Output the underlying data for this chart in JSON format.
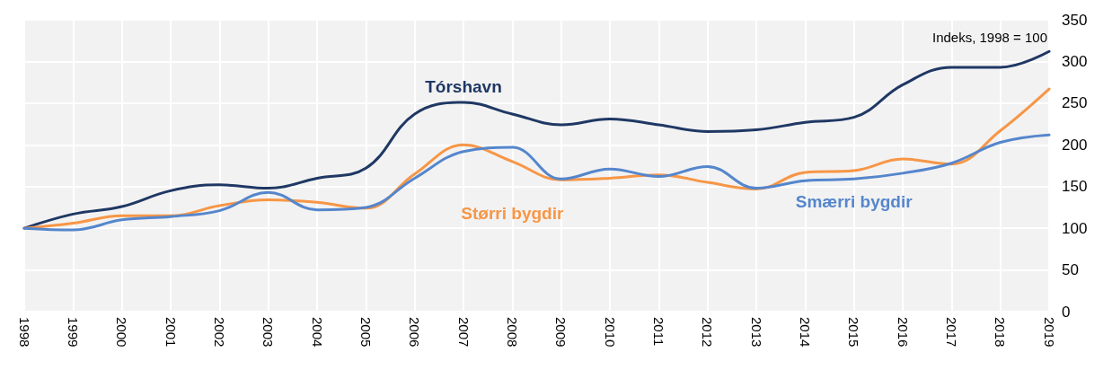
{
  "chart_data": {
    "type": "line",
    "categories": [
      "1998",
      "1999",
      "2000",
      "2001",
      "2002",
      "2003",
      "2004",
      "2005",
      "2006",
      "2007",
      "2008",
      "2009",
      "2010",
      "2011",
      "2012",
      "2013",
      "2014",
      "2015",
      "2016",
      "2017",
      "2018",
      "2019"
    ],
    "series": [
      {
        "name": "Tórshavn",
        "color": "#1f3864",
        "values": [
          100,
          117,
          126,
          145,
          152,
          148,
          160,
          172,
          237,
          251,
          237,
          224,
          231,
          224,
          216,
          218,
          227,
          233,
          272,
          293,
          293,
          312
        ]
      },
      {
        "name": "Størri bygdir",
        "color": "#f79646",
        "values": [
          100,
          106,
          115,
          115,
          127,
          134,
          131,
          124,
          165,
          200,
          180,
          158,
          160,
          164,
          155,
          147,
          167,
          169,
          183,
          177,
          217,
          267
        ]
      },
      {
        "name": "Smærri bygdir",
        "color": "#5586cc",
        "values": [
          100,
          98,
          110,
          114,
          121,
          143,
          122,
          125,
          160,
          192,
          197,
          159,
          171,
          162,
          174,
          148,
          157,
          159,
          166,
          178,
          203,
          212
        ]
      }
    ],
    "ylim": [
      0,
      350
    ],
    "yticks": [
      0,
      50,
      100,
      150,
      200,
      250,
      300,
      350
    ],
    "annotations": [
      "Indeks, 1998 = 100"
    ],
    "grid": true,
    "legend": false,
    "marker": "none",
    "line_style": "solid"
  }
}
